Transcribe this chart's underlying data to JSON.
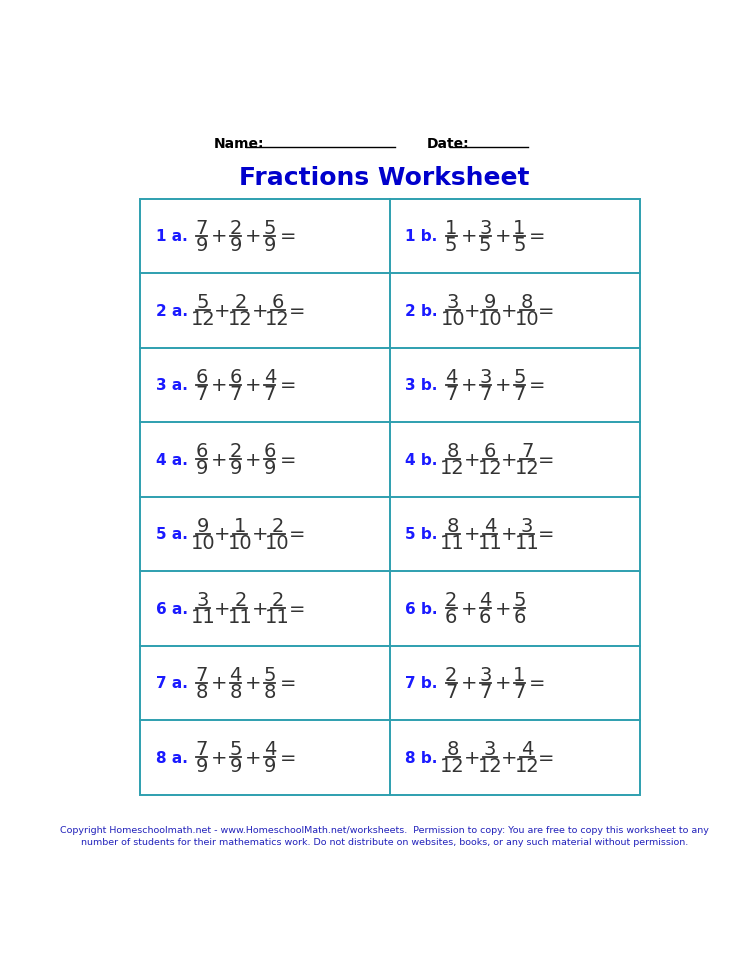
{
  "title": "Fractions Worksheet",
  "title_color": "#0000CC",
  "title_fontsize": 18,
  "name_label": "Name:",
  "date_label": "Date:",
  "background_color": "#ffffff",
  "grid_color": "#2E9FAF",
  "label_color": "#1a1aff",
  "fraction_color": "#333333",
  "footer_line1": "Copyright Homeschoolmath.net - www.HomeschoolMath.net/worksheets.  Permission to copy: You are free to copy this worksheet to any",
  "footer_line2": "number of students for their mathematics work. Do not distribute on websites, books, or any such material without permission.",
  "footer_color": "#2222bb",
  "problems": [
    {
      "label": "1 a.",
      "fractions": [
        [
          "7",
          "9"
        ],
        [
          "2",
          "9"
        ],
        [
          "5",
          "9"
        ]
      ],
      "has_eq": true
    },
    {
      "label": "1 b.",
      "fractions": [
        [
          "1",
          "5"
        ],
        [
          "3",
          "5"
        ],
        [
          "1",
          "5"
        ]
      ],
      "has_eq": true
    },
    {
      "label": "2 a.",
      "fractions": [
        [
          "5",
          "12"
        ],
        [
          "2",
          "12"
        ],
        [
          "6",
          "12"
        ]
      ],
      "has_eq": true
    },
    {
      "label": "2 b.",
      "fractions": [
        [
          "3",
          "10"
        ],
        [
          "9",
          "10"
        ],
        [
          "8",
          "10"
        ]
      ],
      "has_eq": true
    },
    {
      "label": "3 a.",
      "fractions": [
        [
          "6",
          "7"
        ],
        [
          "6",
          "7"
        ],
        [
          "4",
          "7"
        ]
      ],
      "has_eq": true
    },
    {
      "label": "3 b.",
      "fractions": [
        [
          "4",
          "7"
        ],
        [
          "3",
          "7"
        ],
        [
          "5",
          "7"
        ]
      ],
      "has_eq": true
    },
    {
      "label": "4 a.",
      "fractions": [
        [
          "6",
          "9"
        ],
        [
          "2",
          "9"
        ],
        [
          "6",
          "9"
        ]
      ],
      "has_eq": true
    },
    {
      "label": "4 b.",
      "fractions": [
        [
          "8",
          "12"
        ],
        [
          "6",
          "12"
        ],
        [
          "7",
          "12"
        ]
      ],
      "has_eq": true
    },
    {
      "label": "5 a.",
      "fractions": [
        [
          "9",
          "10"
        ],
        [
          "1",
          "10"
        ],
        [
          "2",
          "10"
        ]
      ],
      "has_eq": true
    },
    {
      "label": "5 b.",
      "fractions": [
        [
          "8",
          "11"
        ],
        [
          "4",
          "11"
        ],
        [
          "3",
          "11"
        ]
      ],
      "has_eq": true
    },
    {
      "label": "6 a.",
      "fractions": [
        [
          "3",
          "11"
        ],
        [
          "2",
          "11"
        ],
        [
          "2",
          "11"
        ]
      ],
      "has_eq": true
    },
    {
      "label": "6 b.",
      "fractions": [
        [
          "2",
          "6"
        ],
        [
          "4",
          "6"
        ],
        [
          "5",
          "6"
        ]
      ],
      "has_eq": false
    },
    {
      "label": "7 a.",
      "fractions": [
        [
          "7",
          "8"
        ],
        [
          "4",
          "8"
        ],
        [
          "5",
          "8"
        ]
      ],
      "has_eq": true
    },
    {
      "label": "7 b.",
      "fractions": [
        [
          "2",
          "7"
        ],
        [
          "3",
          "7"
        ],
        [
          "1",
          "7"
        ]
      ],
      "has_eq": true
    },
    {
      "label": "8 a.",
      "fractions": [
        [
          "7",
          "9"
        ],
        [
          "5",
          "9"
        ],
        [
          "4",
          "9"
        ]
      ],
      "has_eq": true
    },
    {
      "label": "8 b.",
      "fractions": [
        [
          "8",
          "12"
        ],
        [
          "3",
          "12"
        ],
        [
          "4",
          "12"
        ]
      ],
      "has_eq": true
    }
  ]
}
